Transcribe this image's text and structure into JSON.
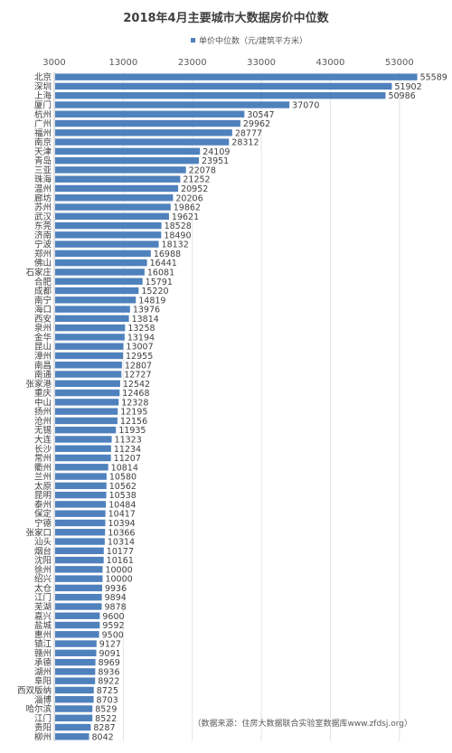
{
  "chart_data": {
    "type": "bar",
    "orientation": "horizontal",
    "title": "2018年4月主要城市大数据房价中位数",
    "legend": {
      "label": "单价中位数（元/建筑平方米）",
      "placement": "top-right"
    },
    "source": "（数据来源：住房大数据联合实验室数据库www.zfdsj.org）",
    "xlim": [
      3000,
      58000
    ],
    "x_ticks": [
      3000,
      13000,
      23000,
      33000,
      43000,
      53000
    ],
    "x_tick_labels": [
      "3000",
      "13000",
      "23000",
      "33000",
      "43000",
      "53000"
    ],
    "bar_color": "#4f81bd",
    "categories": [
      "北京",
      "深圳",
      "上海",
      "厦门",
      "杭州",
      "广州",
      "福州",
      "南京",
      "天津",
      "青岛",
      "三亚",
      "珠海",
      "温州",
      "廊坊",
      "苏州",
      "武汉",
      "东莞",
      "济南",
      "宁波",
      "郑州",
      "佛山",
      "石家庄",
      "合肥",
      "成都",
      "南宁",
      "海口",
      "西安",
      "泉州",
      "金华",
      "昆山",
      "漳州",
      "南昌",
      "南通",
      "张家港",
      "重庆",
      "中山",
      "扬州",
      "沧州",
      "无锡",
      "大连",
      "长沙",
      "常州",
      "衢州",
      "兰州",
      "太原",
      "昆明",
      "泰州",
      "保定",
      "宁德",
      "张家口",
      "汕头",
      "烟台",
      "沈阳",
      "徐州",
      "绍兴",
      "太仓",
      "江门",
      "芜湖",
      "嘉兴",
      "盐城",
      "惠州",
      "镇江",
      "赣州",
      "承德",
      "湖州",
      "阜阳",
      "西双版纳",
      "淄博",
      "哈尔滨",
      "江门",
      "贵阳",
      "柳州"
    ],
    "values": [
      55589,
      51902,
      50986,
      37070,
      30547,
      29962,
      28777,
      28312,
      24109,
      23951,
      22078,
      21252,
      20952,
      20206,
      19862,
      19621,
      18528,
      18490,
      18132,
      16988,
      16441,
      16081,
      15791,
      15220,
      14819,
      13976,
      13814,
      13258,
      13194,
      13007,
      12955,
      12807,
      12727,
      12542,
      12468,
      12328,
      12195,
      12156,
      11935,
      11323,
      11234,
      11207,
      10814,
      10580,
      10562,
      10538,
      10484,
      10417,
      10394,
      10366,
      10314,
      10177,
      10161,
      10000,
      10000,
      9936,
      9894,
      9878,
      9600,
      9592,
      9500,
      9127,
      9091,
      8969,
      8936,
      8922,
      8725,
      8703,
      8529,
      8522,
      8287,
      8042
    ],
    "value_labels": [
      "55589",
      "51902",
      "50986",
      "37070",
      "30547",
      "29962",
      "28777",
      "28312",
      "24109",
      "23951",
      "22078",
      "21252",
      "20952",
      "20206",
      "19862",
      "19621",
      "18528",
      "18490",
      "18132",
      "16988",
      "16441",
      "16081",
      "15791",
      "15220",
      "14819",
      "13976",
      "13814",
      "13258",
      "13194",
      "13007",
      "12955",
      "12807",
      "12727",
      "12542",
      "12468",
      "12328",
      "12195",
      "12156",
      "11935",
      "11323",
      "11234",
      "11207",
      "10814",
      "10580",
      "10562",
      "10538",
      "10484",
      "10417",
      "10394",
      "10366",
      "10314",
      "10177",
      "10161",
      "10000",
      "10000",
      "9936",
      "9894",
      "9878",
      "9600",
      "9592",
      "9500",
      "9127",
      "9091",
      "8969",
      "8936",
      "8922",
      "8725",
      "8703",
      "8529",
      "8522",
      "8287",
      "8042"
    ]
  }
}
